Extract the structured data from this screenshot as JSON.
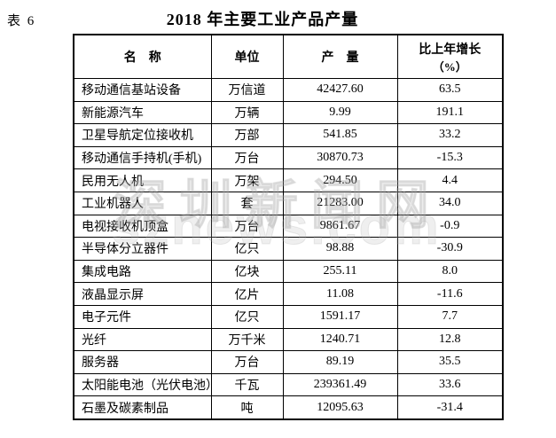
{
  "page": {
    "table_label": "表 6",
    "title": "2018 年主要工业产品产量"
  },
  "watermark": {
    "line1": "深圳新闻网",
    "line2": "sznews.com"
  },
  "table": {
    "headers": {
      "name": "名　称",
      "unit": "单位",
      "output": "产　量",
      "growth_line1": "比上年增长",
      "growth_line2": "（%）"
    },
    "rows": [
      {
        "name": "移动通信基站设备",
        "unit": "万信道",
        "output": "42427.60",
        "growth": "63.5"
      },
      {
        "name": "新能源汽车",
        "unit": "万辆",
        "output": "9.99",
        "growth": "191.1"
      },
      {
        "name": "卫星导航定位接收机",
        "unit": "万部",
        "output": "541.85",
        "growth": "33.2"
      },
      {
        "name": "移动通信手持机(手机)",
        "unit": "万台",
        "output": "30870.73",
        "growth": "-15.3"
      },
      {
        "name": "民用无人机",
        "unit": "万架",
        "output": "294.50",
        "growth": "4.4"
      },
      {
        "name": "工业机器人",
        "unit": "套",
        "output": "21283.00",
        "growth": "34.0"
      },
      {
        "name": "电视接收机顶盒",
        "unit": "万台",
        "output": "9861.67",
        "growth": "-0.9"
      },
      {
        "name": "半导体分立器件",
        "unit": "亿只",
        "output": "98.88",
        "growth": "-30.9"
      },
      {
        "name": "集成电路",
        "unit": "亿块",
        "output": "255.11",
        "growth": "8.0"
      },
      {
        "name": "液晶显示屏",
        "unit": "亿片",
        "output": "11.08",
        "growth": "-11.6"
      },
      {
        "name": "电子元件",
        "unit": "亿只",
        "output": "1591.17",
        "growth": "7.7"
      },
      {
        "name": "光纤",
        "unit": "万千米",
        "output": "1240.71",
        "growth": "12.8"
      },
      {
        "name": "服务器",
        "unit": "万台",
        "output": "89.19",
        "growth": "35.5"
      },
      {
        "name": "太阳能电池（光伏电池）",
        "unit": "千瓦",
        "output": "239361.49",
        "growth": "33.6"
      },
      {
        "name": "石墨及碳素制品",
        "unit": "吨",
        "output": "12095.63",
        "growth": "-31.4"
      }
    ]
  }
}
